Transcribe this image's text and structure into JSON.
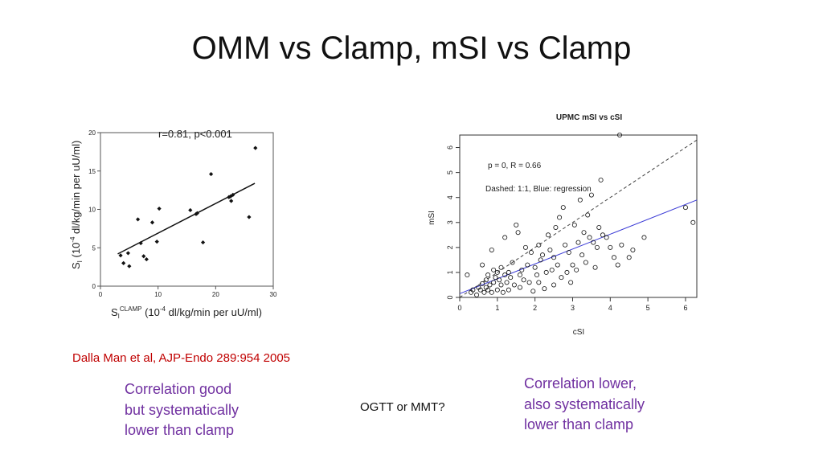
{
  "title": "OMM vs Clamp, mSI vs Clamp",
  "chart_data": [
    {
      "type": "scatter",
      "title": "",
      "annotation": "r=0.81, p<0.001",
      "xlabel": {
        "main": "S",
        "sub": "I",
        "sup": "CLAMP",
        "rest1": " (10",
        "exp": "-4",
        "rest2": " dl/kg/min per uU/ml)"
      },
      "ylabel": {
        "main": "S",
        "sub": "I",
        "rest1": " (10",
        "exp": "-4",
        "rest2": " dl/kg/min per uU/ml)"
      },
      "xlim": [
        0,
        30
      ],
      "ylim": [
        0,
        20
      ],
      "x_ticks": [
        0,
        10,
        20,
        30
      ],
      "y_ticks": [
        0,
        5,
        10,
        15,
        20
      ],
      "x_tick_labels": [
        "0",
        "10",
        "20",
        "30"
      ],
      "y_tick_labels": [
        "0",
        "5",
        "10",
        "15",
        "20"
      ],
      "marker": "filled-diamond",
      "points": [
        [
          3.5,
          4.0
        ],
        [
          4.0,
          3.0
        ],
        [
          4.8,
          4.3
        ],
        [
          5.0,
          2.6
        ],
        [
          6.5,
          8.7
        ],
        [
          7.0,
          5.6
        ],
        [
          7.5,
          3.9
        ],
        [
          8.0,
          3.5
        ],
        [
          9.0,
          8.3
        ],
        [
          9.8,
          5.8
        ],
        [
          10.2,
          10.1
        ],
        [
          15.6,
          9.9
        ],
        [
          16.6,
          9.4
        ],
        [
          16.8,
          9.5
        ],
        [
          17.8,
          5.7
        ],
        [
          19.2,
          14.6
        ],
        [
          22.3,
          11.6
        ],
        [
          22.6,
          11.7
        ],
        [
          22.7,
          11.1
        ],
        [
          23.0,
          11.9
        ],
        [
          25.8,
          9.0
        ],
        [
          26.9,
          18.0
        ]
      ],
      "regression": {
        "x": [
          3.0,
          26.8
        ],
        "y": [
          4.2,
          13.4
        ]
      }
    },
    {
      "type": "scatter",
      "title": "UPMC mSI vs cSI",
      "annotation_lines": [
        "p = 0, R = 0.66",
        "Dashed: 1:1, Blue: regression"
      ],
      "xlabel": "cSI",
      "ylabel": "mSI",
      "xlim": [
        0,
        6.3
      ],
      "ylim": [
        0,
        6.5
      ],
      "x_ticks": [
        0,
        1,
        2,
        3,
        4,
        5,
        6
      ],
      "y_ticks": [
        0,
        1,
        2,
        3,
        4,
        5,
        6
      ],
      "x_tick_labels": [
        "0",
        "1",
        "2",
        "3",
        "4",
        "5",
        "6"
      ],
      "y_tick_labels": [
        "0",
        "1",
        "2",
        "3",
        "4",
        "5",
        "6"
      ],
      "marker": "open-circle",
      "regression_color": "#3a3ad6",
      "identity_line": true,
      "regression": {
        "x": [
          0,
          6.3
        ],
        "y": [
          0.15,
          3.9
        ]
      },
      "points": [
        [
          0.2,
          0.9
        ],
        [
          0.3,
          0.2
        ],
        [
          0.35,
          0.3
        ],
        [
          0.45,
          0.1
        ],
        [
          0.5,
          0.4
        ],
        [
          0.55,
          0.3
        ],
        [
          0.6,
          1.3
        ],
        [
          0.6,
          0.55
        ],
        [
          0.65,
          0.2
        ],
        [
          0.7,
          0.4
        ],
        [
          0.7,
          0.7
        ],
        [
          0.75,
          0.3
        ],
        [
          0.75,
          0.9
        ],
        [
          0.8,
          0.5
        ],
        [
          0.85,
          1.9
        ],
        [
          0.85,
          0.2
        ],
        [
          0.9,
          0.6
        ],
        [
          0.9,
          1.1
        ],
        [
          0.95,
          0.8
        ],
        [
          1.0,
          0.3
        ],
        [
          1.0,
          1.0
        ],
        [
          1.05,
          0.7
        ],
        [
          1.1,
          0.5
        ],
        [
          1.1,
          1.2
        ],
        [
          1.15,
          0.2
        ],
        [
          1.2,
          0.9
        ],
        [
          1.2,
          2.4
        ],
        [
          1.25,
          0.6
        ],
        [
          1.3,
          1.0
        ],
        [
          1.3,
          0.3
        ],
        [
          1.35,
          0.8
        ],
        [
          1.4,
          1.4
        ],
        [
          1.45,
          0.5
        ],
        [
          1.5,
          2.9
        ],
        [
          1.55,
          2.6
        ],
        [
          1.6,
          0.9
        ],
        [
          1.6,
          0.4
        ],
        [
          1.65,
          1.1
        ],
        [
          1.7,
          0.7
        ],
        [
          1.75,
          2.0
        ],
        [
          1.8,
          1.3
        ],
        [
          1.85,
          0.6
        ],
        [
          1.9,
          1.8
        ],
        [
          1.95,
          0.25
        ],
        [
          2.0,
          1.2
        ],
        [
          2.05,
          0.9
        ],
        [
          2.1,
          2.1
        ],
        [
          2.1,
          0.6
        ],
        [
          2.15,
          1.5
        ],
        [
          2.2,
          1.7
        ],
        [
          2.25,
          0.35
        ],
        [
          2.3,
          1.0
        ],
        [
          2.35,
          2.5
        ],
        [
          2.4,
          1.9
        ],
        [
          2.45,
          1.1
        ],
        [
          2.5,
          0.5
        ],
        [
          2.5,
          1.6
        ],
        [
          2.55,
          2.8
        ],
        [
          2.6,
          1.3
        ],
        [
          2.65,
          3.2
        ],
        [
          2.7,
          0.8
        ],
        [
          2.75,
          3.6
        ],
        [
          2.8,
          2.1
        ],
        [
          2.85,
          1.0
        ],
        [
          2.9,
          1.8
        ],
        [
          2.95,
          0.6
        ],
        [
          3.0,
          1.3
        ],
        [
          3.05,
          2.9
        ],
        [
          3.1,
          1.1
        ],
        [
          3.15,
          2.2
        ],
        [
          3.2,
          3.9
        ],
        [
          3.25,
          1.7
        ],
        [
          3.3,
          2.6
        ],
        [
          3.35,
          1.4
        ],
        [
          3.4,
          3.3
        ],
        [
          3.45,
          2.4
        ],
        [
          3.5,
          4.1
        ],
        [
          3.55,
          2.2
        ],
        [
          3.6,
          1.2
        ],
        [
          3.65,
          2.0
        ],
        [
          3.7,
          2.8
        ],
        [
          3.75,
          4.7
        ],
        [
          3.8,
          2.5
        ],
        [
          3.9,
          2.4
        ],
        [
          4.0,
          2.0
        ],
        [
          4.1,
          1.6
        ],
        [
          4.2,
          1.3
        ],
        [
          4.25,
          6.5
        ],
        [
          4.3,
          2.1
        ],
        [
          4.5,
          1.6
        ],
        [
          4.6,
          1.9
        ],
        [
          4.9,
          2.4
        ],
        [
          6.0,
          3.6
        ],
        [
          6.2,
          3.0
        ]
      ]
    }
  ],
  "citation": "Dalla Man et al, AJP-Endo 289:954 2005",
  "left_note": [
    "Correlation good",
    "but systematically",
    "lower than clamp"
  ],
  "center_question": "OGTT or MMT?",
  "right_note": [
    "Correlation lower,",
    "also systematically",
    "lower than clamp"
  ]
}
